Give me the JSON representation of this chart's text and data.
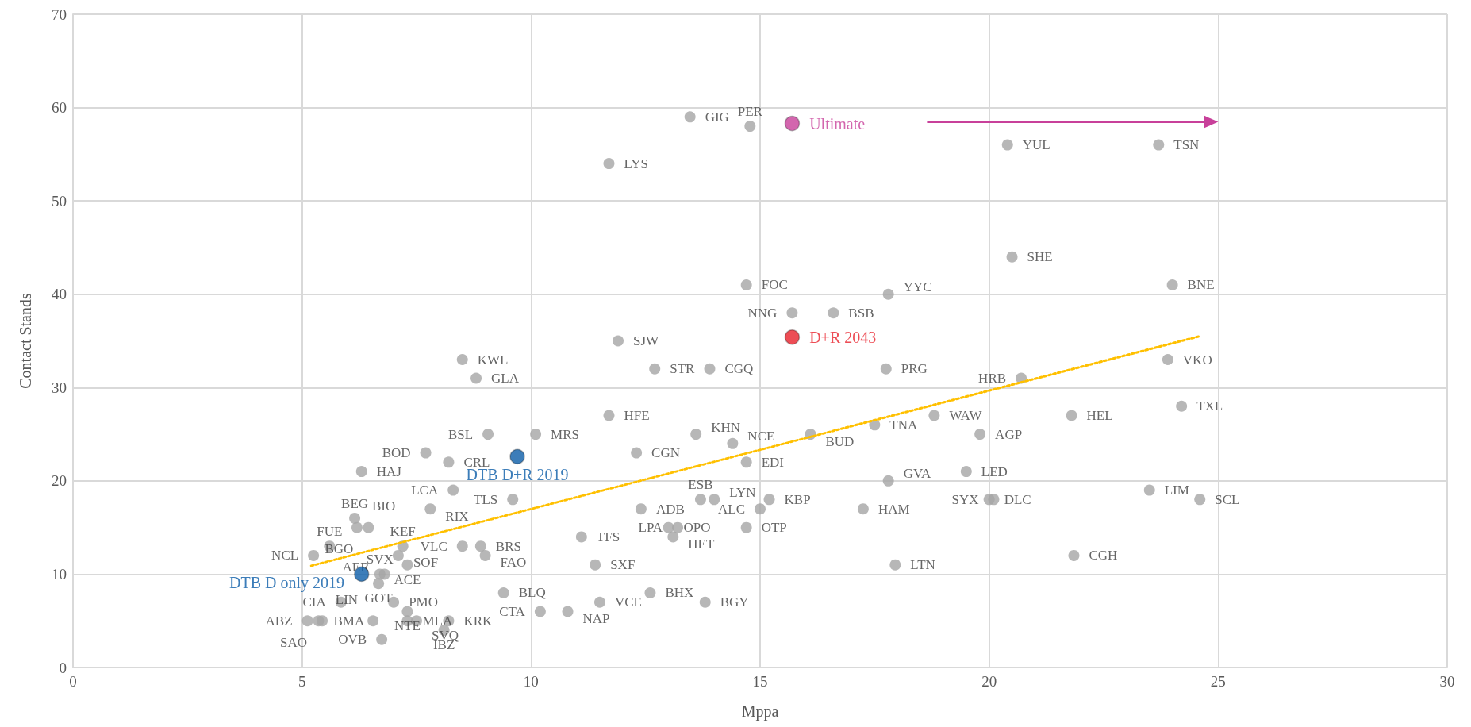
{
  "chart_data": {
    "type": "scatter",
    "xlabel": "Mppa",
    "ylabel": "Contact Stands",
    "xlim": [
      0,
      30
    ],
    "xticks": [
      0,
      5,
      10,
      15,
      20,
      25,
      30
    ],
    "ylim": [
      0,
      70
    ],
    "yticks": [
      0,
      10,
      20,
      30,
      40,
      50,
      60,
      70
    ],
    "grid": true,
    "legend": false,
    "marker": "circle",
    "series": [
      {
        "type": "scatter",
        "color": "#a5a5a5",
        "x": [
          13.47,
          14.78,
          11.7,
          20.4,
          23.7,
          20.5,
          14.7,
          17.8,
          24.0,
          15.7,
          16.6,
          11.9,
          8.5,
          8.8,
          12.7,
          13.9,
          17.75,
          23.9,
          20.7,
          24.2,
          21.8,
          18.8,
          17.5,
          16.1,
          19.8,
          19.5,
          17.8,
          23.5,
          24.6,
          17.25,
          21.85,
          17.95,
          11.7,
          9.06,
          10.1,
          13.6,
          14.4,
          12.3,
          14.7,
          9.6,
          8.3,
          7.8,
          12.4,
          14.7,
          11.1,
          11.4,
          9.4,
          12.6,
          13.8,
          8.5,
          8.9,
          9.0,
          7.2,
          5.6,
          5.25,
          7.1,
          7.3,
          6.7,
          6.8,
          6.67,
          5.85,
          7.0,
          7.3,
          6.74,
          5.12,
          5.36,
          5.44,
          6.55,
          7.3,
          7.5,
          8.2,
          8.1,
          6.3,
          6.15,
          6.2,
          6.45,
          13.0,
          13.2,
          13.1,
          13.7,
          14.0,
          15.2,
          15.0,
          7.7,
          8.2,
          20.0,
          20.1,
          10.2,
          10.8,
          11.5
        ],
        "values": [
          59,
          58,
          54,
          56,
          56,
          44,
          41,
          40,
          41,
          38,
          38,
          35,
          33,
          31,
          32,
          32,
          32,
          33,
          31,
          28,
          27,
          27,
          26,
          25,
          25,
          21,
          20,
          19,
          18,
          17,
          12,
          11,
          27,
          25,
          25,
          25,
          24,
          23,
          22,
          18,
          19,
          17,
          17,
          15,
          14,
          11,
          8,
          8,
          7,
          13,
          13,
          12,
          13,
          13,
          12,
          12,
          11,
          10,
          10,
          9,
          7,
          7,
          6,
          3,
          5,
          5,
          5,
          5,
          5,
          5,
          5,
          4,
          21,
          16,
          15,
          15,
          15,
          15,
          14,
          18,
          18,
          18,
          17,
          23,
          22,
          18,
          18,
          6,
          6,
          7
        ],
        "value_labels": [
          "GIG",
          "PER",
          "LYS",
          "YUL",
          "TSN",
          "SHE",
          "FOC",
          "YYC",
          "BNE",
          "NNG",
          "BSB",
          "SJW",
          "KWL",
          "GLA",
          "STR",
          "CGQ",
          "PRG",
          "VKO",
          "HRB",
          "TXL",
          "HEL",
          "WAW",
          "TNA",
          "BUD",
          "AGP",
          "LED",
          "GVA",
          "LIM",
          "SCL",
          "HAM",
          "CGH",
          "LTN",
          "HFE",
          "BSL",
          "MRS",
          "KHN",
          "NCE",
          "CGN",
          "EDI",
          "TLS",
          "LCA",
          "RIX",
          "ADB",
          "OTP",
          "TFS",
          "SXF",
          "BLQ",
          "BHX",
          "BGY",
          "VLC",
          "BRS",
          "FAO",
          "KEF",
          "FUE",
          "NCL",
          "SOF",
          "ACE",
          "SVX",
          "AER",
          "GOT",
          "CIA",
          "PMO",
          "NTE",
          "OVB",
          "ABZ",
          "BMA",
          "SAO",
          "LIN",
          "MLA",
          "SVQ",
          "KRK",
          "IBZ",
          "HAJ",
          "BEG",
          "BIO",
          "BGO",
          "OPO",
          "LPA",
          "HET",
          "ESB",
          "LYN",
          "KBP",
          "ALC",
          "BOD",
          "CRL",
          "DLC",
          "SYX",
          "CTA",
          "NAP",
          "VCE"
        ]
      },
      {
        "type": "scatter",
        "name": "DTB D only 2019",
        "color": "#0b5ca8",
        "x": [
          6.3
        ],
        "values": [
          10
        ]
      },
      {
        "type": "scatter",
        "name": "DTB D+R 2019",
        "color": "#0b5ca8",
        "x": [
          9.7
        ],
        "values": [
          22.6
        ]
      },
      {
        "type": "scatter",
        "name": "D+R 2043",
        "color": "#e8202a",
        "x": [
          15.7
        ],
        "values": [
          35.4
        ]
      },
      {
        "type": "scatter",
        "name": "Ultimate",
        "color": "#c8409a",
        "x": [
          15.7
        ],
        "values": [
          58.3
        ]
      },
      {
        "type": "line",
        "color": "#ffc000",
        "line_style": "dotted",
        "marker": "none",
        "x": [
          5.2,
          24.6
        ],
        "values": [
          10.9,
          35.5
        ]
      }
    ]
  }
}
